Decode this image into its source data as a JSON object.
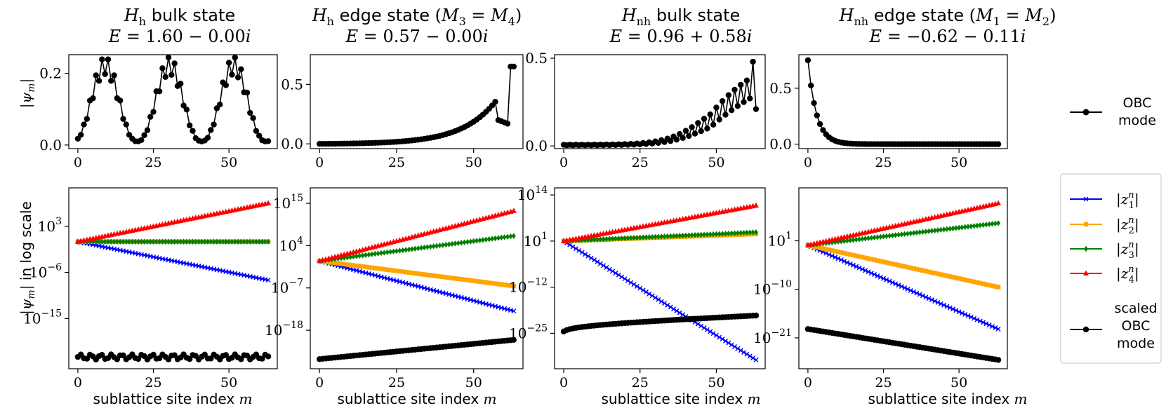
{
  "figure": {
    "xlabel": "sublattice site index m",
    "top_ylabel": "|ψm|",
    "bottom_ylabel": "|ψm| in log scale",
    "colors": {
      "z1": "#0000ff",
      "z2": "#ffa500",
      "z3": "#008000",
      "z4": "#ff0000",
      "obc": "#000000"
    }
  },
  "legend_top": {
    "label_line1": "OBC",
    "label_line2": "mode"
  },
  "legend_bottom": {
    "entries": [
      {
        "key": "z1",
        "label": "|z1n|"
      },
      {
        "key": "z2",
        "label": "|z2n|"
      },
      {
        "key": "z3",
        "label": "|z3n|"
      },
      {
        "key": "z4",
        "label": "|z4n|"
      },
      {
        "key": "obc",
        "label_lines": [
          "scaled",
          "OBC",
          "mode"
        ]
      }
    ]
  },
  "chart_data": [
    {
      "type": "line",
      "panel": "top",
      "column": 0,
      "title_line1": "Hh bulk state",
      "title_line2": "E = 1.60 − 0.00i",
      "xlim": [
        -3,
        66
      ],
      "ylim": [
        -0.01,
        0.252
      ],
      "xticks": [
        0,
        25,
        50
      ],
      "yticks": [
        0.0,
        0.2
      ],
      "ytick_labels": [
        "0.0",
        "0.2"
      ],
      "profile": "bulk",
      "params": {
        "amp": 0.235,
        "base": 0.01
      },
      "series": [
        {
          "name": "OBC mode",
          "key": "obc",
          "marker": "circle",
          "n": 64
        }
      ]
    },
    {
      "type": "line",
      "panel": "top",
      "column": 1,
      "title_line1": "Hh edge state (M3 = M4)",
      "title_line2": "E = 0.57 − 0.00i",
      "xlim": [
        -3,
        66
      ],
      "ylim": [
        -0.04,
        0.75
      ],
      "xticks": [
        0,
        25,
        50
      ],
      "yticks": [
        0.0,
        0.5
      ],
      "ytick_labels": [
        "0.0",
        "0.5"
      ],
      "profile": "edge_right",
      "series": [
        {
          "name": "OBC mode",
          "key": "obc",
          "marker": "circle",
          "n": 64
        }
      ]
    },
    {
      "type": "line",
      "panel": "top",
      "column": 2,
      "title_line1": "Hnh bulk state",
      "title_line2": "E = 0.96 + 0.58i",
      "xlim": [
        -3,
        66
      ],
      "ylim": [
        -0.015,
        0.52
      ],
      "xticks": [
        0,
        25,
        50
      ],
      "yticks": [
        0.0,
        0.5
      ],
      "ytick_labels": [
        "0.0",
        "0.5"
      ],
      "profile": "growth_right",
      "series": [
        {
          "name": "OBC mode",
          "key": "obc",
          "marker": "circle",
          "n": 64
        }
      ]
    },
    {
      "type": "line",
      "panel": "top",
      "column": 3,
      "title_line1": "Hnh edge state (M1 = M2)",
      "title_line2": "E = −0.62 − 0.11i",
      "xlim": [
        -3,
        66
      ],
      "ylim": [
        -0.04,
        0.8
      ],
      "xticks": [
        0,
        25,
        50
      ],
      "yticks": [
        0.0,
        0.5
      ],
      "ytick_labels": [
        "0.0",
        "0.5"
      ],
      "profile": "edge_left",
      "series": [
        {
          "name": "OBC mode",
          "key": "obc",
          "marker": "circle",
          "n": 64
        }
      ]
    },
    {
      "type": "line",
      "panel": "bottom",
      "column": 0,
      "yscale": "log",
      "xlim": [
        -3,
        66
      ],
      "ylim_log10": [
        -24.8,
        10.5
      ],
      "xticks": [
        0,
        25,
        50
      ],
      "yticks_log10": [
        3,
        -6,
        -15
      ],
      "ytick_labels": [
        "10^3",
        "10^-6",
        "10^-15"
      ],
      "series": [
        {
          "key": "z1",
          "marker": "x",
          "log10_start": 0,
          "log10_end": -7.5
        },
        {
          "key": "z2",
          "marker": "square",
          "log10_start": 0,
          "log10_end": 0
        },
        {
          "key": "z3",
          "marker": "diamond",
          "log10_start": 0,
          "log10_end": 0
        },
        {
          "key": "z4",
          "marker": "triangle",
          "log10_start": 0,
          "log10_end": 7.5
        },
        {
          "key": "obc",
          "marker": "circle",
          "log10_start": -22.5,
          "log10_end": -22.5,
          "wiggle": 0.5
        }
      ]
    },
    {
      "type": "line",
      "panel": "bottom",
      "column": 1,
      "yscale": "log",
      "xlim": [
        -3,
        66
      ],
      "ylim_log10": [
        -28,
        19
      ],
      "xticks": [
        0,
        25,
        50
      ],
      "yticks_log10": [
        15,
        4,
        -7,
        -18
      ],
      "ytick_labels": [
        "10^15",
        "10^4",
        "10^-7",
        "10^-18"
      ],
      "series": [
        {
          "key": "z1",
          "marker": "x",
          "log10_start": 0,
          "log10_end": -13
        },
        {
          "key": "z2",
          "marker": "square",
          "log10_start": 0,
          "log10_end": -6.5
        },
        {
          "key": "z3",
          "marker": "diamond",
          "log10_start": 0,
          "log10_end": 6.5
        },
        {
          "key": "z4",
          "marker": "triangle",
          "log10_start": 0,
          "log10_end": 13
        },
        {
          "key": "obc",
          "marker": "circle",
          "log10_start": -25.5,
          "log10_end": -20.5
        }
      ]
    },
    {
      "type": "line",
      "panel": "bottom",
      "column": 2,
      "yscale": "log",
      "xlim": [
        -3,
        66
      ],
      "ylim_log10": [
        -35,
        16
      ],
      "xticks": [
        0,
        25,
        50
      ],
      "yticks_log10": [
        14,
        1,
        -12,
        -25
      ],
      "ytick_labels": [
        "10^14",
        "10^1",
        "10^-12",
        "10^-25"
      ],
      "series": [
        {
          "key": "z1",
          "marker": "x",
          "log10_start": 1,
          "log10_end": -32.5
        },
        {
          "key": "z2",
          "marker": "square",
          "log10_start": 1,
          "log10_end": 3
        },
        {
          "key": "z3",
          "marker": "diamond",
          "log10_start": 1,
          "log10_end": 3.5
        },
        {
          "key": "z4",
          "marker": "triangle",
          "log10_start": 1,
          "log10_end": 11
        },
        {
          "key": "obc",
          "marker": "circle",
          "log10_start": -24.5,
          "log10_end": -20
        }
      ]
    },
    {
      "type": "line",
      "panel": "bottom",
      "column": 3,
      "yscale": "log",
      "xlim": [
        -3,
        66
      ],
      "ylim_log10": [
        -28,
        13
      ],
      "xticks": [
        0,
        25,
        50
      ],
      "yticks_log10": [
        1,
        -10,
        -21
      ],
      "ytick_labels": [
        "10^1",
        "10^-10",
        "10^-21"
      ],
      "series": [
        {
          "key": "z1",
          "marker": "x",
          "log10_start": 0,
          "log10_end": -19
        },
        {
          "key": "z2",
          "marker": "square",
          "log10_start": 0,
          "log10_end": -9.5
        },
        {
          "key": "z3",
          "marker": "diamond",
          "log10_start": 0,
          "log10_end": 5
        },
        {
          "key": "z4",
          "marker": "triangle",
          "log10_start": 0,
          "log10_end": 9.5
        },
        {
          "key": "obc",
          "marker": "circle",
          "log10_start": -19,
          "log10_end": -26
        }
      ]
    }
  ]
}
